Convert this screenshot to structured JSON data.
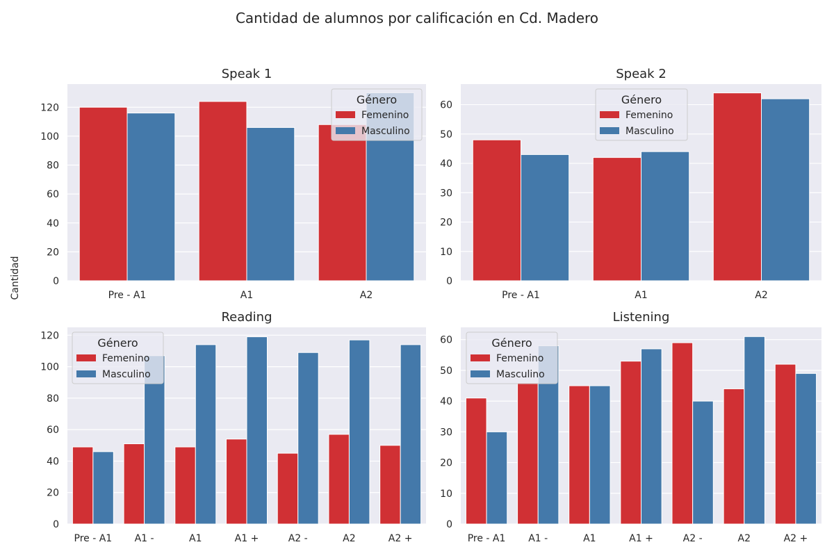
{
  "figure": {
    "title": "Cantidad de alumnos por calificación en Cd. Madero",
    "ylabel": "Cantidad"
  },
  "colors": {
    "Femenino": "#d03034",
    "Masculino": "#4479aa",
    "axes_bg": "#eaeaf2",
    "grid": "#ffffff"
  },
  "chart_data": [
    {
      "type": "bar",
      "title": "Speak 1",
      "categories": [
        "Pre - A1",
        "A1",
        "A2"
      ],
      "series": [
        {
          "name": "Femenino",
          "values": [
            120,
            124,
            108
          ]
        },
        {
          "name": "Masculino",
          "values": [
            116,
            106,
            130
          ]
        }
      ],
      "yticks": [
        0,
        20,
        40,
        60,
        80,
        100,
        120
      ],
      "ylim": [
        0,
        136
      ],
      "legend": {
        "title": "Género",
        "placement": "upper-right"
      }
    },
    {
      "type": "bar",
      "title": "Speak 2",
      "categories": [
        "Pre - A1",
        "A1",
        "A2"
      ],
      "series": [
        {
          "name": "Femenino",
          "values": [
            48,
            42,
            64
          ]
        },
        {
          "name": "Masculino",
          "values": [
            43,
            44,
            62
          ]
        }
      ],
      "yticks": [
        0,
        10,
        20,
        30,
        40,
        50,
        60
      ],
      "ylim": [
        0,
        67
      ],
      "legend": {
        "title": "Género",
        "placement": "upper-center"
      }
    },
    {
      "type": "bar",
      "title": "Reading",
      "categories": [
        "Pre - A1",
        "A1 -",
        "A1",
        "A1 +",
        "A2 -",
        "A2",
        "A2 +"
      ],
      "series": [
        {
          "name": "Femenino",
          "values": [
            49,
            51,
            49,
            54,
            45,
            57,
            50
          ]
        },
        {
          "name": "Masculino",
          "values": [
            46,
            107,
            114,
            119,
            109,
            117,
            114
          ]
        }
      ],
      "yticks": [
        0,
        20,
        40,
        60,
        80,
        100,
        120
      ],
      "ylim": [
        0,
        125
      ],
      "legend": {
        "title": "Género",
        "placement": "upper-left"
      }
    },
    {
      "type": "bar",
      "title": "Listening",
      "categories": [
        "Pre - A1",
        "A1 -",
        "A1",
        "A1 +",
        "A2 -",
        "A2",
        "A2 +"
      ],
      "series": [
        {
          "name": "Femenino",
          "values": [
            41,
            46,
            45,
            53,
            59,
            44,
            52
          ]
        },
        {
          "name": "Masculino",
          "values": [
            30,
            58,
            45,
            57,
            40,
            61,
            49
          ]
        }
      ],
      "yticks": [
        0,
        10,
        20,
        30,
        40,
        50,
        60
      ],
      "ylim": [
        0,
        64
      ],
      "legend": {
        "title": "Género",
        "placement": "upper-left"
      }
    }
  ]
}
